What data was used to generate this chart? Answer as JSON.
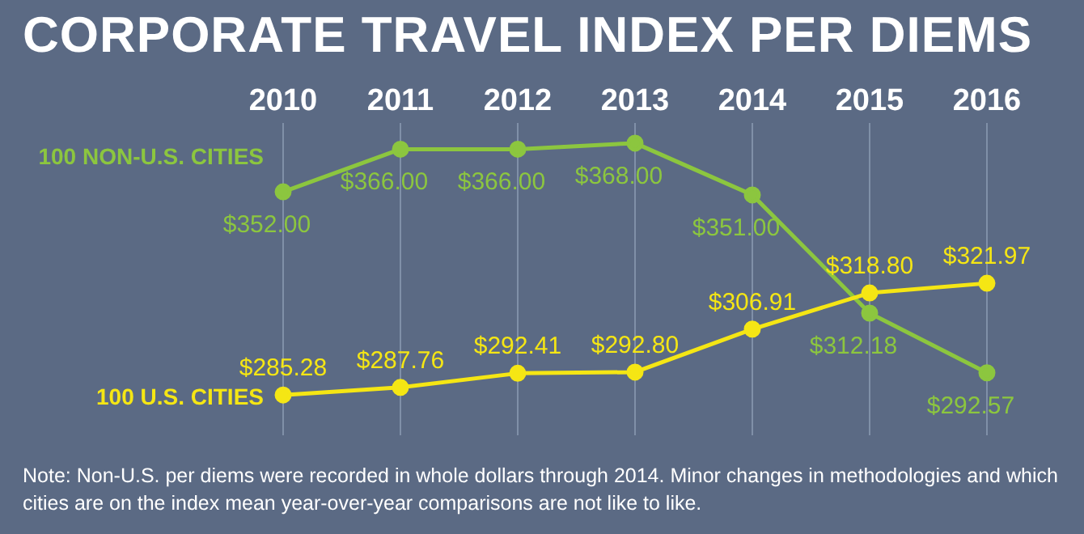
{
  "chart_data": {
    "type": "line",
    "title": "CORPORATE TRAVEL INDEX PER DIEMS",
    "categories": [
      "2010",
      "2011",
      "2012",
      "2013",
      "2014",
      "2015",
      "2016"
    ],
    "series": [
      {
        "name": "100 NON-U.S. CITIES",
        "color": "#8cc63f",
        "values": [
          352.0,
          366.0,
          366.0,
          368.0,
          351.0,
          312.18,
          292.57
        ],
        "value_labels": [
          "$352.00",
          "$366.00",
          "$366.00",
          "$368.00",
          "$351.00",
          "$312.18",
          "$292.57"
        ]
      },
      {
        "name": "100 U.S. CITIES",
        "color": "#f5e614",
        "values": [
          285.28,
          287.76,
          292.41,
          292.8,
          306.91,
          318.8,
          321.97
        ],
        "value_labels": [
          "$285.28",
          "$287.76",
          "$292.41",
          "$292.80",
          "$306.91",
          "$318.80",
          "$321.97"
        ]
      }
    ],
    "grid": "x",
    "marker": "circle",
    "annotations": [
      "Note: Non-U.S. per diems were recorded in whole dollars through 2014. Minor changes in methodologies and which cities are on the index mean year-over-year comparisons are not like to like."
    ]
  }
}
